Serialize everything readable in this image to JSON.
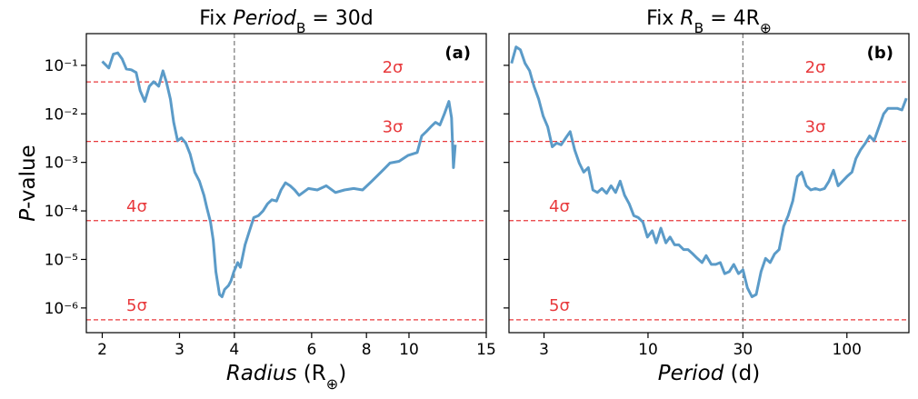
{
  "chart_data": [
    {
      "type": "line",
      "title": [
        {
          "text": "Fix "
        },
        {
          "text": "Period",
          "style": "italic"
        },
        {
          "text": "B",
          "style": "sub"
        },
        {
          "text": " = 30d"
        }
      ],
      "xlabel": [
        {
          "text": "Radius",
          "style": "italic"
        },
        {
          "text": " (R"
        },
        {
          "text": "⊕",
          "style": "sub"
        },
        {
          "text": ")"
        }
      ],
      "ylabel": [
        {
          "text": "P",
          "style": "italic"
        },
        {
          "text": "-value"
        }
      ],
      "panel_label": "(a)",
      "x_scale": "log",
      "y_scale": "log",
      "xlim": [
        1.84,
        15.0
      ],
      "ylim": [
        3.1e-07,
        0.45
      ],
      "xticks": [
        2,
        3,
        4,
        6,
        8,
        10,
        15
      ],
      "yticks": [
        {
          "value": 1e-06,
          "label": "10⁻⁶"
        },
        {
          "value": 1e-05,
          "label": "10⁻⁵"
        },
        {
          "value": 0.0001,
          "label": "10⁻⁴"
        },
        {
          "value": 0.001,
          "label": "10⁻³"
        },
        {
          "value": 0.01,
          "label": "10⁻²"
        },
        {
          "value": 0.1,
          "label": "10⁻¹"
        }
      ],
      "show_ytick_labels": true,
      "color": "#5b9bc8",
      "threshold_color": "#e8393c",
      "hlines": [
        {
          "value": 0.0455,
          "label": "2σ"
        },
        {
          "value": 0.0027,
          "label": "3σ"
        },
        {
          "value": 6.3e-05,
          "label": "4σ"
        },
        {
          "value": 5.7e-07,
          "label": "5σ"
        }
      ],
      "vline": 4,
      "x": [
        2.0,
        2.07,
        2.12,
        2.17,
        2.22,
        2.27,
        2.33,
        2.39,
        2.44,
        2.5,
        2.56,
        2.62,
        2.69,
        2.75,
        2.8,
        2.86,
        2.91,
        2.97,
        3.03,
        3.1,
        3.17,
        3.25,
        3.33,
        3.41,
        3.46,
        3.53,
        3.58,
        3.63,
        3.7,
        3.75,
        3.8,
        3.88,
        3.93,
        3.99,
        4.07,
        4.13,
        4.23,
        4.33,
        4.43,
        4.54,
        4.65,
        4.76,
        4.87,
        4.99,
        5.11,
        5.23,
        5.36,
        5.49,
        5.62,
        5.9,
        6.18,
        6.48,
        6.8,
        7.13,
        7.48,
        7.84,
        8.23,
        8.63,
        8.84,
        9.05,
        9.49,
        9.96,
        10.44,
        10.69,
        10.95,
        11.21,
        11.49,
        11.76,
        12.04,
        12.33,
        12.5,
        12.63,
        12.75
      ],
      "values": [
        0.12,
        0.088,
        0.17,
        0.18,
        0.135,
        0.084,
        0.081,
        0.071,
        0.03,
        0.018,
        0.037,
        0.046,
        0.037,
        0.077,
        0.046,
        0.02,
        0.0067,
        0.0028,
        0.0032,
        0.0025,
        0.0015,
        0.00063,
        0.00041,
        0.00021,
        0.00012,
        5.9e-05,
        2.5e-05,
        5.6e-06,
        1.9e-06,
        1.7e-06,
        2.4e-06,
        2.9e-06,
        3.6e-06,
        5.6e-06,
        8.6e-06,
        6.9e-06,
        2e-05,
        3.9e-05,
        7.3e-05,
        8e-05,
        0.0001,
        0.00014,
        0.00017,
        0.00016,
        0.00027,
        0.00038,
        0.00033,
        0.00027,
        0.00021,
        0.00029,
        0.00027,
        0.00033,
        0.00024,
        0.00027,
        0.00029,
        0.00027,
        0.00041,
        0.00063,
        0.00078,
        0.00097,
        0.00105,
        0.0014,
        0.0016,
        0.0035,
        0.0043,
        0.0054,
        0.0067,
        0.0059,
        0.01,
        0.018,
        0.0083,
        0.00078,
        0.0023
      ]
    },
    {
      "type": "line",
      "title": [
        {
          "text": "Fix "
        },
        {
          "text": "R",
          "style": "italic"
        },
        {
          "text": "B",
          "style": "sub"
        },
        {
          "text": " = 4R"
        },
        {
          "text": "⊕",
          "style": "sub"
        }
      ],
      "xlabel": [
        {
          "text": "Period",
          "style": "italic"
        },
        {
          "text": " (d)"
        }
      ],
      "panel_label": "(b)",
      "x_scale": "log",
      "y_scale": "log",
      "xlim": [
        2.0,
        205
      ],
      "ylim": [
        3.1e-07,
        0.45
      ],
      "xticks": [
        3,
        10,
        30,
        100
      ],
      "yticks": [
        1e-06,
        1e-05,
        0.0001,
        0.001,
        0.01,
        0.1
      ],
      "show_ytick_labels": false,
      "color": "#5b9bc8",
      "threshold_color": "#e8393c",
      "hlines": [
        {
          "value": 0.0455,
          "label": "2σ"
        },
        {
          "value": 0.0027,
          "label": "3σ"
        },
        {
          "value": 6.3e-05,
          "label": "4σ"
        },
        {
          "value": 5.7e-07,
          "label": "5σ"
        }
      ],
      "vline": 30,
      "x": [
        2.06,
        2.17,
        2.28,
        2.41,
        2.54,
        2.67,
        2.82,
        2.97,
        3.13,
        3.3,
        3.47,
        3.66,
        3.86,
        4.06,
        4.28,
        4.51,
        4.75,
        5.01,
        5.28,
        5.57,
        5.87,
        6.19,
        6.52,
        6.87,
        7.24,
        7.63,
        8.05,
        8.48,
        8.94,
        9.42,
        9.93,
        10.5,
        11.0,
        11.6,
        12.3,
        12.9,
        13.6,
        14.3,
        15.1,
        15.9,
        16.8,
        17.7,
        18.7,
        19.6,
        20.8,
        21.9,
        23.1,
        24.3,
        25.6,
        27.0,
        28.5,
        30.0,
        31.6,
        33.3,
        35.0,
        37.0,
        39.0,
        41.1,
        43.3,
        45.6,
        48.1,
        50.7,
        53.4,
        56.3,
        59.3,
        62.5,
        65.9,
        69.4,
        73.2,
        77.1,
        81.3,
        85.6,
        90.3,
        95.1,
        100,
        106,
        111,
        117,
        124,
        130,
        137,
        145,
        153,
        161,
        170,
        179,
        189,
        199
      ],
      "values": [
        0.11,
        0.24,
        0.21,
        0.11,
        0.077,
        0.037,
        0.02,
        0.009,
        0.0054,
        0.0021,
        0.0025,
        0.0023,
        0.0032,
        0.0043,
        0.0018,
        0.00097,
        0.00063,
        0.00078,
        0.00027,
        0.00024,
        0.00029,
        0.00023,
        0.00033,
        0.00024,
        0.00041,
        0.00021,
        0.00014,
        8e-05,
        7.3e-05,
        5.9e-05,
        2.9e-05,
        3.9e-05,
        2.2e-05,
        4.4e-05,
        2.2e-05,
        2.9e-05,
        2e-05,
        2e-05,
        1.6e-05,
        1.6e-05,
        1.3e-05,
        1.05e-05,
        8.6e-06,
        1.2e-05,
        7.9e-06,
        7.9e-06,
        8.6e-06,
        5.1e-06,
        5.6e-06,
        7.9e-06,
        5.1e-06,
        6.1e-06,
        2.6e-06,
        1.7e-06,
        1.9e-06,
        5.6e-06,
        1.05e-05,
        8.6e-06,
        1.3e-05,
        1.6e-05,
        4.8e-05,
        8e-05,
        0.00016,
        0.00051,
        0.00063,
        0.00033,
        0.00027,
        0.00029,
        0.00027,
        0.00029,
        0.00041,
        0.00069,
        0.00033,
        0.00041,
        0.00051,
        0.00063,
        0.0012,
        0.0018,
        0.0025,
        0.0035,
        0.0028,
        0.0054,
        0.01,
        0.013,
        0.013,
        0.013,
        0.012,
        0.021
      ]
    }
  ]
}
